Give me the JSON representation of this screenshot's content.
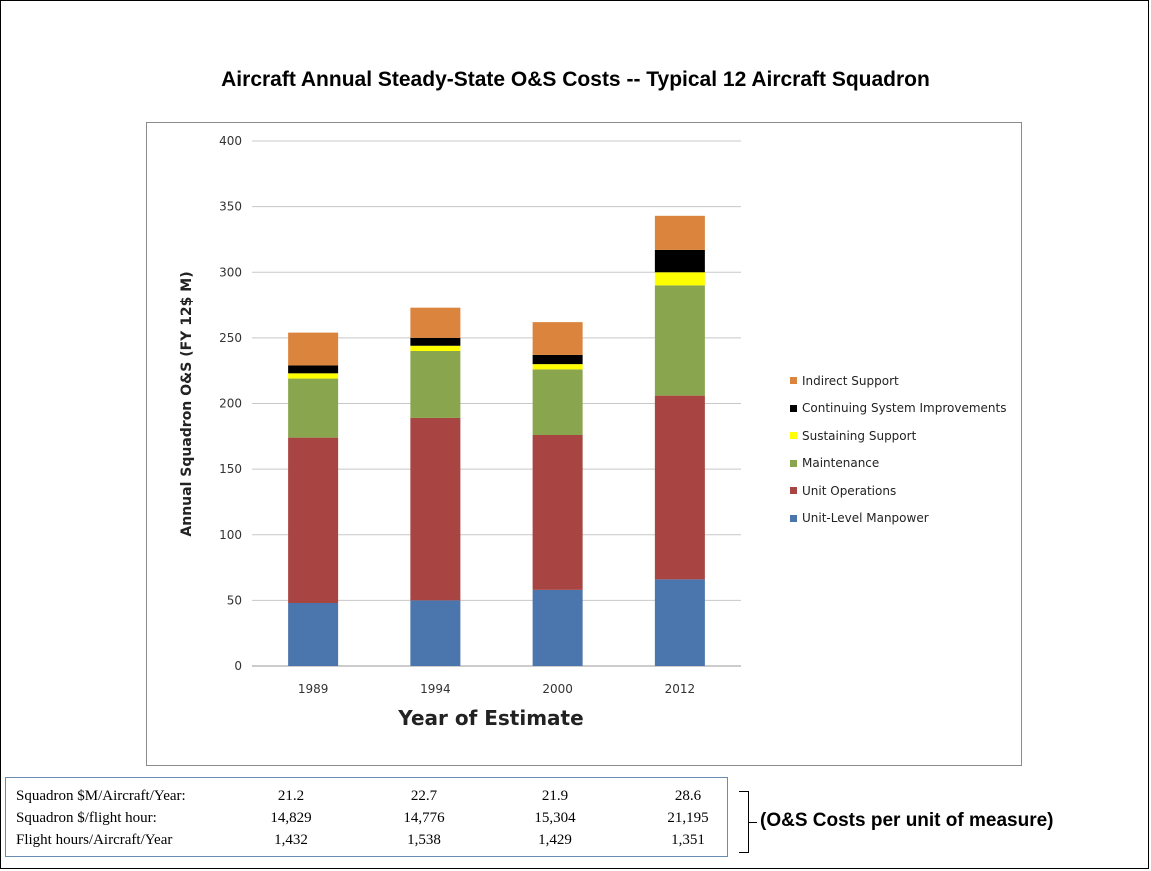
{
  "slide_title": "Aircraft Annual Steady-State O&S Costs  --  Typical 12 Aircraft Squadron",
  "chart_data": {
    "type": "bar",
    "stacked": true,
    "categories": [
      "1989",
      "1994",
      "2000",
      "2012"
    ],
    "series": [
      {
        "name": "Unit-Level Manpower",
        "color": "#4a75ad",
        "values": [
          48,
          50,
          58,
          66
        ]
      },
      {
        "name": "Unit  Operations",
        "color": "#a84442",
        "values": [
          126,
          139,
          118,
          140
        ]
      },
      {
        "name": "Maintenance",
        "color": "#89a54e",
        "values": [
          45,
          51,
          50,
          84
        ]
      },
      {
        "name": "Sustaining Support",
        "color": "#ffff00",
        "values": [
          4,
          4,
          4,
          10
        ]
      },
      {
        "name": "Continuing System Improvements",
        "color": "#000000",
        "values": [
          6,
          6,
          7,
          17
        ]
      },
      {
        "name": "Indirect Support",
        "color": "#db843d",
        "values": [
          25,
          23,
          25,
          26
        ]
      }
    ],
    "xlabel": "Year of Estimate",
    "ylabel": "Annual Squadron O&S (FY 12$ M)",
    "ylim": [
      0,
      400
    ],
    "yticks": [
      "0",
      "50",
      "100",
      "150",
      "200",
      "250",
      "300",
      "350",
      "400"
    ],
    "grid": true,
    "legend_position": "right"
  },
  "metrics": {
    "rows": [
      {
        "label": "Squadron $M/Aircraft/Year:",
        "values": [
          "21.2",
          "22.7",
          "21.9",
          "28.6"
        ]
      },
      {
        "label": "Squadron $/flight hour:",
        "values": [
          "14,829",
          "14,776",
          "15,304",
          "21,195"
        ]
      },
      {
        "label": "Flight hours/Aircraft/Year",
        "values": [
          "1,432",
          "1,538",
          "1,429",
          "1,351"
        ]
      }
    ],
    "note": "(O&S Costs per unit of measure)"
  }
}
